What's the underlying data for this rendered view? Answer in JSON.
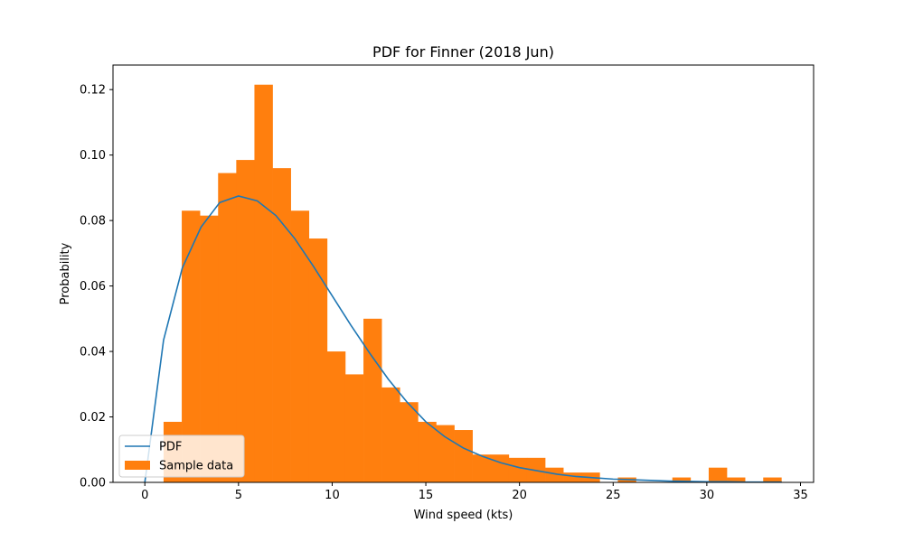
{
  "chart_data": {
    "type": "histogram",
    "title": "PDF for Finner (2018 Jun)",
    "xlabel": "Wind speed (kts)",
    "ylabel": "Probability",
    "xlim": [
      -1.7,
      35.7
    ],
    "ylim": [
      0,
      0.1275
    ],
    "xticks": [
      0,
      5,
      10,
      15,
      20,
      25,
      30,
      35
    ],
    "yticks": [
      0.0,
      0.02,
      0.04,
      0.06,
      0.08,
      0.1,
      0.12
    ],
    "ytick_labels": [
      "0.00",
      "0.02",
      "0.04",
      "0.06",
      "0.08",
      "0.10",
      "0.12"
    ],
    "legend_position": "lower-left",
    "grid": false,
    "colors": {
      "bars": "#ff7f0e",
      "line": "#1f77b4"
    },
    "series": [
      {
        "name": "PDF",
        "kind": "line",
        "x": [
          0,
          1,
          2,
          3,
          4,
          5,
          6,
          7,
          8,
          9,
          10,
          11,
          12,
          13,
          14,
          15,
          16,
          17,
          18,
          19,
          20,
          21,
          22,
          23,
          24,
          25,
          26,
          27,
          28,
          29,
          30,
          31,
          32,
          33,
          34
        ],
        "y": [
          0.0,
          0.0435,
          0.0655,
          0.078,
          0.0855,
          0.0875,
          0.086,
          0.0815,
          0.0745,
          0.066,
          0.057,
          0.048,
          0.0395,
          0.0315,
          0.0245,
          0.0185,
          0.014,
          0.0105,
          0.008,
          0.006,
          0.0045,
          0.0035,
          0.0025,
          0.0018,
          0.0014,
          0.001,
          0.0008,
          0.0006,
          0.0004,
          0.0003,
          0.0002,
          0.0002,
          0.0001,
          0.0001,
          0.0001
        ]
      },
      {
        "name": "Sample data",
        "kind": "bars",
        "bin_edges": [
          1.0,
          1.97,
          2.94,
          3.91,
          4.88,
          5.85,
          6.82,
          7.79,
          8.76,
          9.73,
          10.7,
          11.67,
          12.64,
          13.61,
          14.58,
          15.55,
          16.52,
          17.49,
          18.46,
          19.43,
          20.4,
          21.37,
          22.34,
          23.31,
          24.28,
          25.25,
          26.22,
          27.19,
          28.16,
          29.13,
          30.1,
          31.07,
          32.04,
          33.01,
          33.98
        ],
        "values": [
          0.0185,
          0.083,
          0.0815,
          0.0945,
          0.0985,
          0.1215,
          0.096,
          0.083,
          0.0745,
          0.04,
          0.033,
          0.05,
          0.029,
          0.0245,
          0.0185,
          0.0175,
          0.016,
          0.0085,
          0.0085,
          0.0075,
          0.0075,
          0.0045,
          0.003,
          0.003,
          0.0,
          0.0015,
          0.0,
          0.0,
          0.0015,
          0.0,
          0.0045,
          0.0015,
          0.0,
          0.0015
        ]
      }
    ]
  }
}
